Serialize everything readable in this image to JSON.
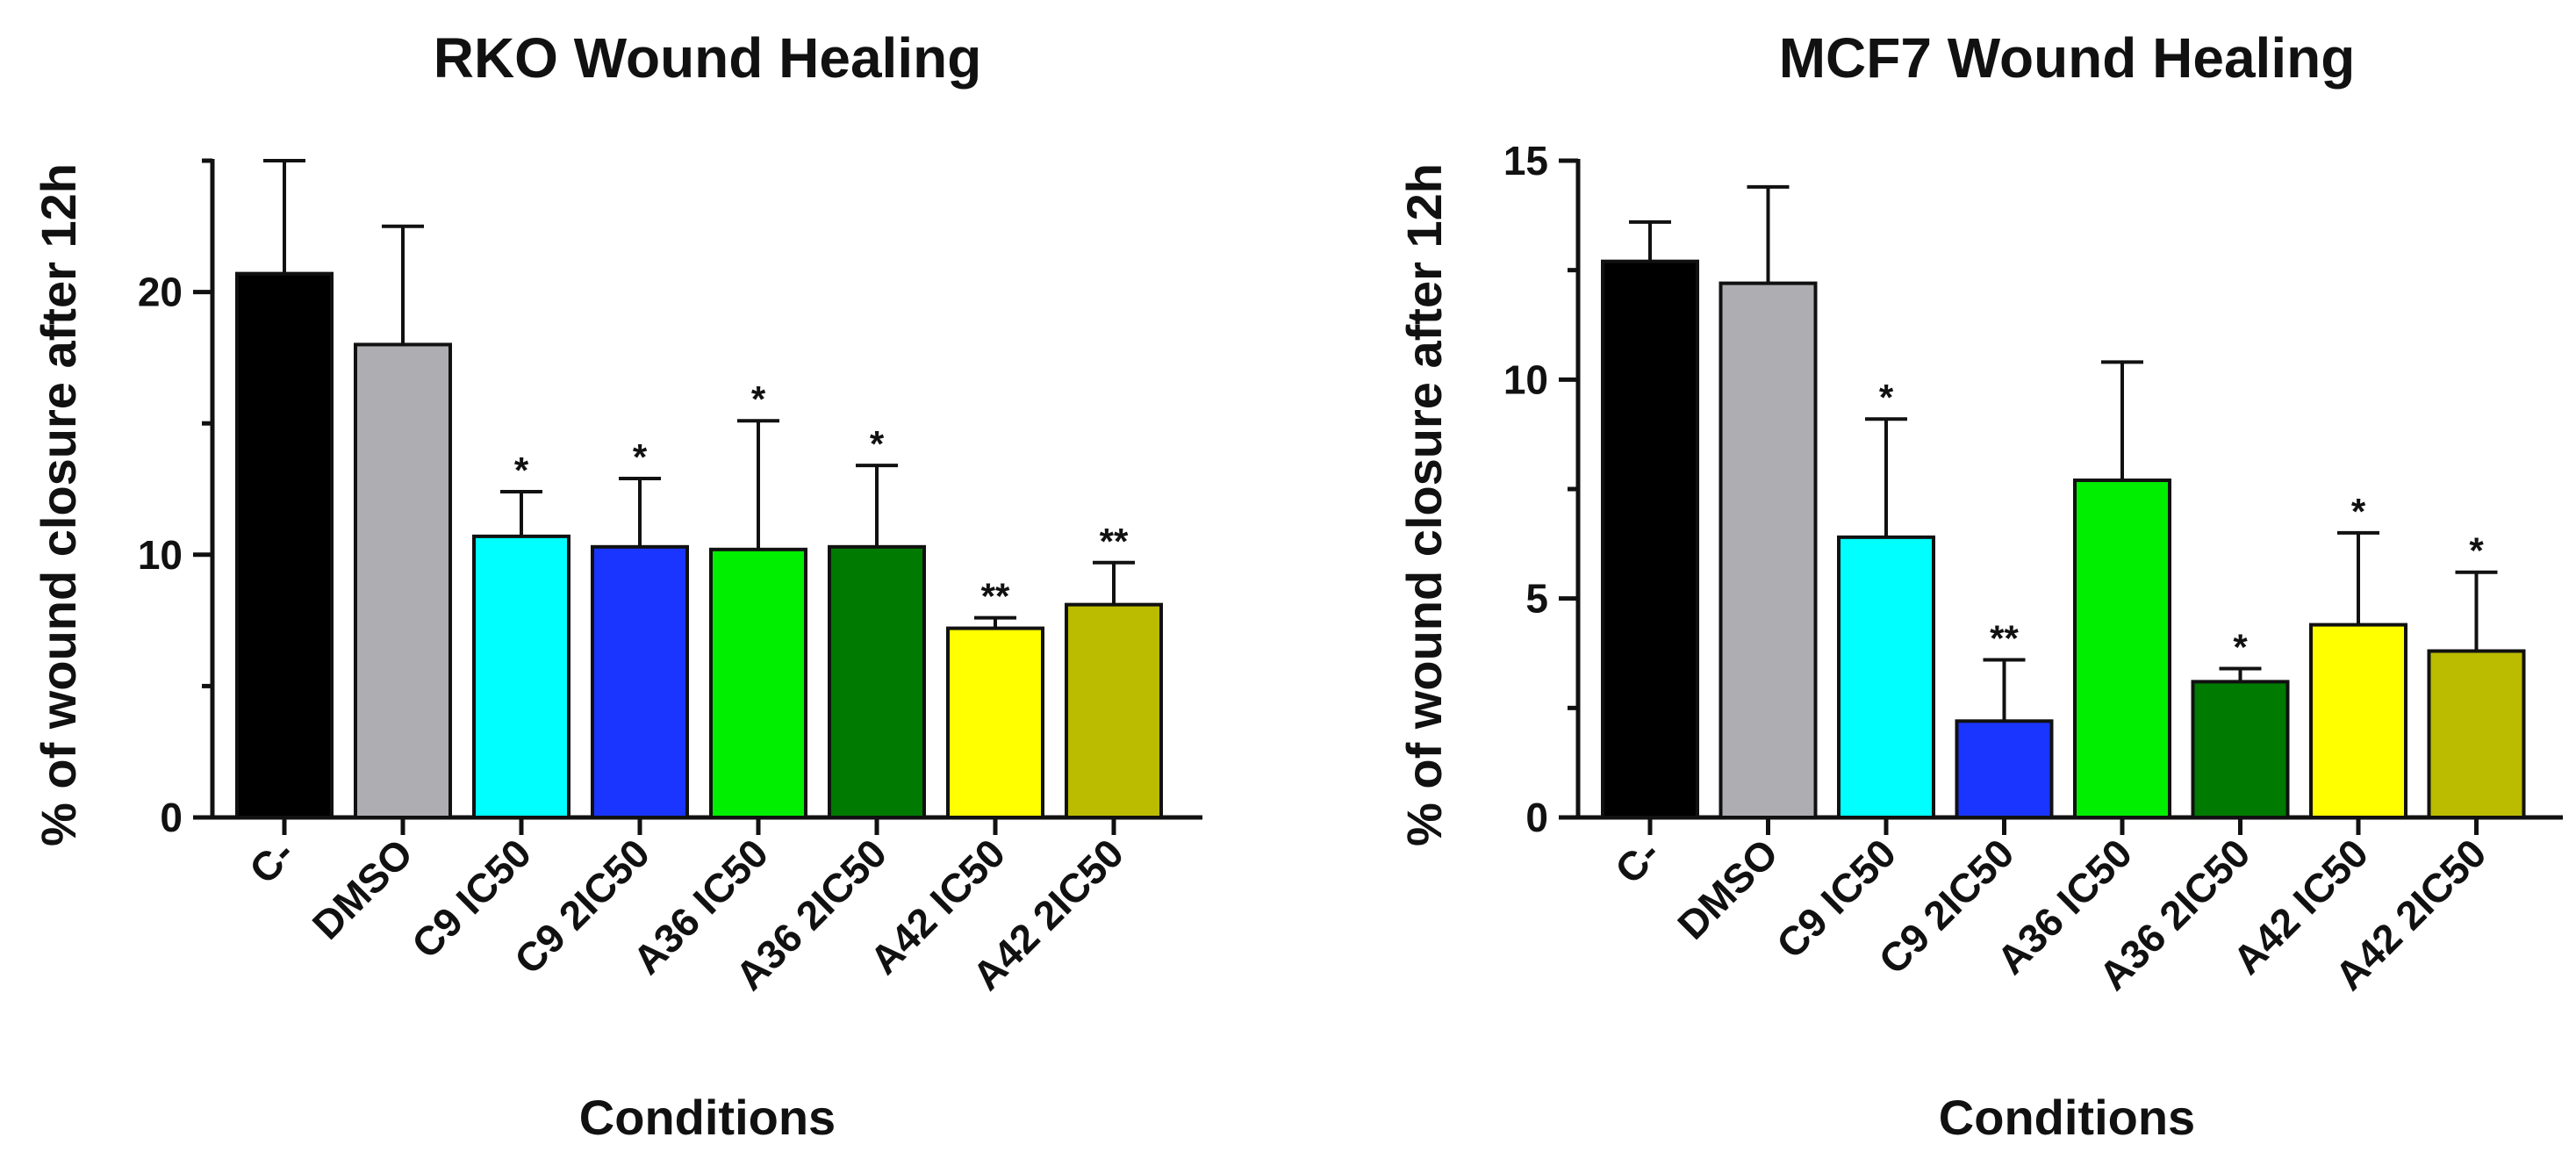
{
  "chart_data": [
    {
      "type": "bar",
      "title": "RKO Wound Healing",
      "xlabel": "Conditions",
      "ylabel": "% of wound closure after 12h",
      "ylim": [
        0,
        25
      ],
      "yticks": [
        0,
        10,
        20
      ],
      "categories": [
        "C-",
        "DMSO",
        "C9 IC50",
        "C9 2IC50",
        "A36 IC50",
        "A36 2IC50",
        "A42 IC50",
        "A42 2IC50"
      ],
      "values": [
        20.7,
        18.0,
        10.7,
        10.3,
        10.2,
        10.3,
        7.2,
        8.1
      ],
      "errors": [
        4.3,
        4.5,
        1.7,
        2.6,
        4.9,
        3.1,
        0.4,
        1.6
      ],
      "significance": [
        "",
        "",
        "*",
        "*",
        "*",
        "*",
        "**",
        "**"
      ],
      "colors": [
        "#000000",
        "#adadb2",
        "#00ffff",
        "#1a35ff",
        "#00ee00",
        "#007a00",
        "#ffff00",
        "#bbbb00"
      ]
    },
    {
      "type": "bar",
      "title": "MCF7 Wound Healing",
      "xlabel": "Conditions",
      "ylabel": "% of wound closure after 12h",
      "ylim": [
        0,
        15
      ],
      "yticks": [
        0,
        5,
        10,
        15
      ],
      "categories": [
        "C-",
        "DMSO",
        "C9 IC50",
        "C9 2IC50",
        "A36 IC50",
        "A36 2IC50",
        "A42 IC50",
        "A42 2IC50"
      ],
      "values": [
        12.7,
        12.2,
        6.4,
        2.2,
        7.7,
        3.1,
        4.4,
        3.8
      ],
      "errors": [
        0.9,
        2.2,
        2.7,
        1.4,
        2.7,
        0.3,
        2.1,
        1.8
      ],
      "significance": [
        "",
        "",
        "*",
        "**",
        "",
        "*",
        "*",
        "*"
      ],
      "colors": [
        "#000000",
        "#adadb2",
        "#00ffff",
        "#1a35ff",
        "#00ee00",
        "#007a00",
        "#ffff00",
        "#bbbb00"
      ]
    }
  ]
}
